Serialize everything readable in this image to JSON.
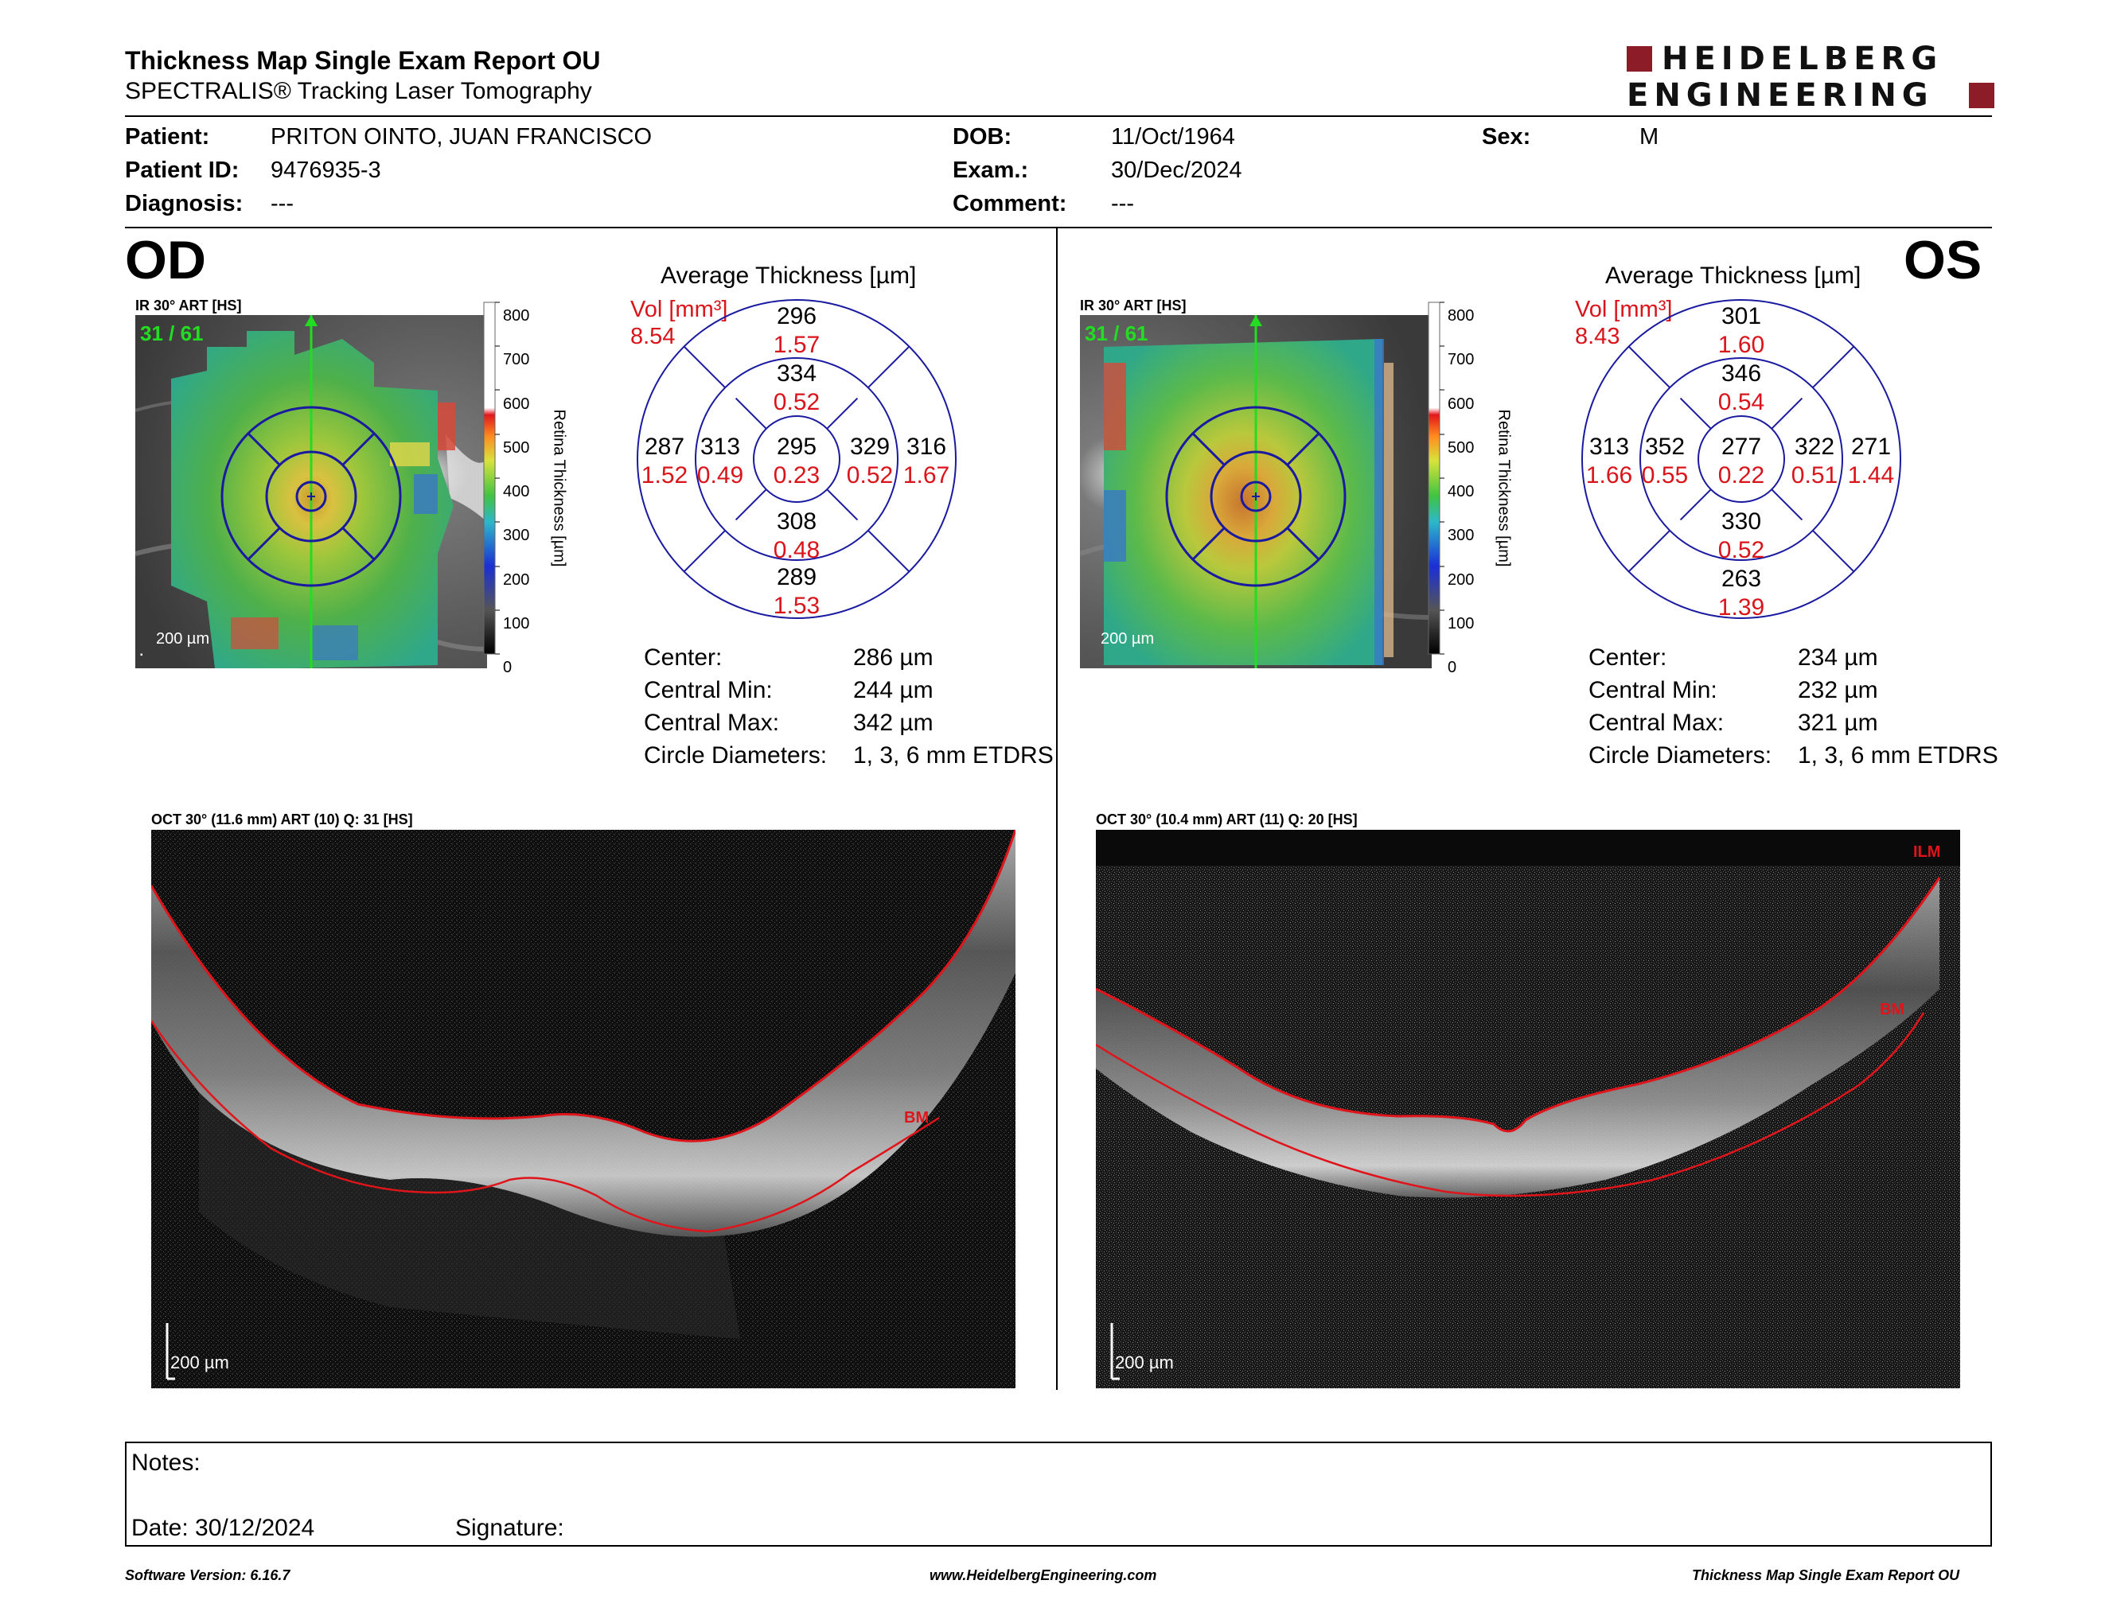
{
  "header": {
    "title": "Thickness Map Single Exam Report OU",
    "subtitle": "SPECTRALIS® Tracking Laser Tomography",
    "logo_line1": "HEIDELBERG",
    "logo_line2": "ENGINEERING",
    "logo_color": "#8c1c28"
  },
  "patient": {
    "patient_label": "Patient:",
    "patient_value": "PRITON OINTO, JUAN FRANCISCO",
    "id_label": "Patient ID:",
    "id_value": "9476935-3",
    "diagnosis_label": "Diagnosis:",
    "diagnosis_value": "---",
    "dob_label": "DOB:",
    "dob_value": "11/Oct/1964",
    "exam_label": "Exam.:",
    "exam_value": "30/Dec/2024",
    "comment_label": "Comment:",
    "comment_value": "---",
    "sex_label": "Sex:",
    "sex_value": "M"
  },
  "od": {
    "eye_label": "OD",
    "ir_label": "IR 30° ART [HS]",
    "frame": "31 / 61",
    "scale_bar": "200 µm",
    "colorbar_ticks": [
      "800",
      "700",
      "600",
      "500",
      "400",
      "300",
      "200",
      "100",
      "0"
    ],
    "colorbar_title": "Retina Thickness [µm]",
    "avg_title": "Average Thickness [µm]",
    "vol_label": "Vol [mm³]",
    "vol_value": "8.54",
    "grid": {
      "center_t": "295",
      "center_v": "0.23",
      "inner_sup_t": "334",
      "inner_sup_v": "0.52",
      "inner_inf_t": "308",
      "inner_inf_v": "0.48",
      "inner_left_t": "313",
      "inner_left_v": "0.49",
      "inner_right_t": "329",
      "inner_right_v": "0.52",
      "outer_sup_t": "296",
      "outer_sup_v": "1.57",
      "outer_inf_t": "289",
      "outer_inf_v": "1.53",
      "outer_left_t": "287",
      "outer_left_v": "1.52",
      "outer_right_t": "316",
      "outer_right_v": "1.67"
    },
    "stats": {
      "center_label": "Center:",
      "center_value": "286 µm",
      "min_label": "Central Min:",
      "min_value": "244 µm",
      "max_label": "Central Max:",
      "max_value": "342 µm",
      "diam_label": "Circle Diameters:",
      "diam_value": "1, 3, 6 mm ETDRS"
    },
    "oct_label": "OCT 30° (11.6 mm) ART (10) Q: 31 [HS]",
    "oct_scale": "200 µm",
    "bm_label": "BM"
  },
  "os": {
    "eye_label": "OS",
    "ir_label": "IR 30° ART [HS]",
    "frame": "31 / 61",
    "scale_bar": "200 µm",
    "colorbar_ticks": [
      "800",
      "700",
      "600",
      "500",
      "400",
      "300",
      "200",
      "100",
      "0"
    ],
    "colorbar_title": "Retina Thickness [µm]",
    "avg_title": "Average Thickness [µm]",
    "vol_label": "Vol [mm³]",
    "vol_value": "8.43",
    "grid": {
      "center_t": "277",
      "center_v": "0.22",
      "inner_sup_t": "346",
      "inner_sup_v": "0.54",
      "inner_inf_t": "330",
      "inner_inf_v": "0.52",
      "inner_left_t": "352",
      "inner_left_v": "0.55",
      "inner_right_t": "322",
      "inner_right_v": "0.51",
      "outer_sup_t": "301",
      "outer_sup_v": "1.60",
      "outer_inf_t": "263",
      "outer_inf_v": "1.39",
      "outer_left_t": "313",
      "outer_left_v": "1.66",
      "outer_right_t": "271",
      "outer_right_v": "1.44"
    },
    "stats": {
      "center_label": "Center:",
      "center_value": "234 µm",
      "min_label": "Central Min:",
      "min_value": "232 µm",
      "max_label": "Central Max:",
      "max_value": "321 µm",
      "diam_label": "Circle Diameters:",
      "diam_value": "1, 3, 6 mm ETDRS"
    },
    "oct_label": "OCT 30° (10.4 mm) ART (11) Q: 20 [HS]",
    "oct_scale": "200 µm",
    "ilm_label": "ILM",
    "bm_label": "BM"
  },
  "notes": {
    "notes_label": "Notes:",
    "date_label": "Date: 30/12/2024",
    "signature_label": "Signature:"
  },
  "footer": {
    "software": "Software Version: 6.16.7",
    "website": "www.HeidelbergEngineering.com",
    "report_name": "Thickness Map Single Exam Report OU"
  },
  "colors": {
    "thickness": "#000000",
    "volume": "#d9151b",
    "grid": "#1a1aa0",
    "segmentation": "#e0141b",
    "scan_line": "#22dd22"
  }
}
